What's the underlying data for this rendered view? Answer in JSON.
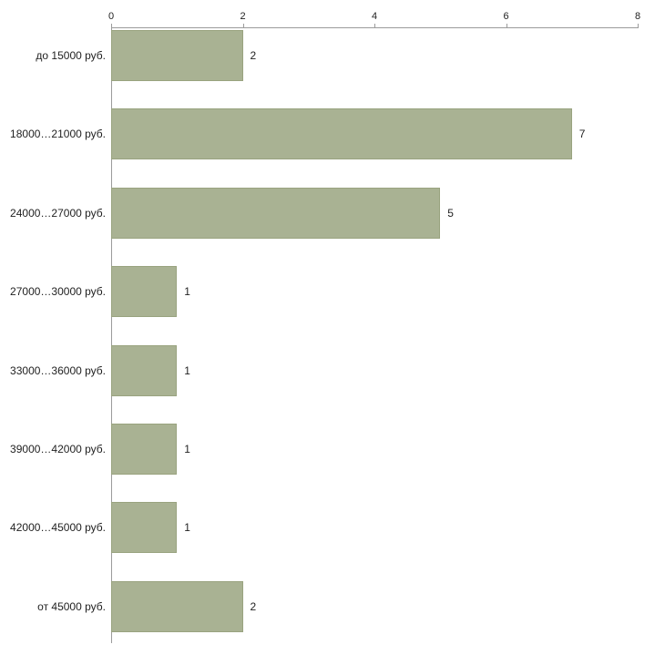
{
  "chart_data": {
    "type": "bar",
    "orientation": "horizontal",
    "title": "",
    "xlabel": "",
    "ylabel": "",
    "categories": [
      "до 15000 руб.",
      "18000…21000 руб.",
      "24000…27000 руб.",
      "27000…30000 руб.",
      "33000…36000 руб.",
      "39000…42000 руб.",
      "42000…45000 руб.",
      "от 45000 руб."
    ],
    "values": [
      2,
      7,
      5,
      1,
      1,
      1,
      1,
      2
    ],
    "xlim": [
      0,
      8
    ],
    "xticks": [
      0,
      2,
      4,
      6,
      8
    ],
    "grid": false,
    "legend": false,
    "axis_position": "top",
    "bar_color": "#a9b293",
    "bar_border_color": "#99a37f",
    "axis_color": "#9b9b9b",
    "text_color": "#1f1f1f"
  }
}
